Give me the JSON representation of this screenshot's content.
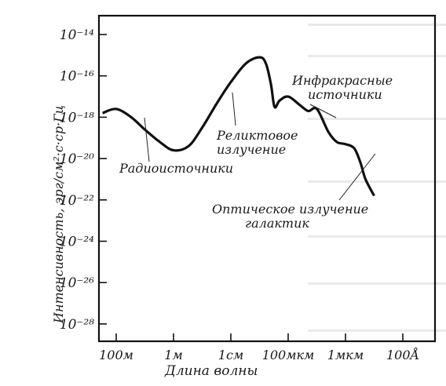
{
  "chart_data": {
    "type": "line",
    "title": "",
    "xlabel": "Длина волны",
    "ylabel": "Интенсивность, эрг/см²·с·ср·Гц",
    "x_tick_labels": [
      "100м",
      "1м",
      "1см",
      "100мкм",
      "1мкм",
      "100Å"
    ],
    "y_tick_labels": [
      "10⁻¹⁴",
      "10⁻¹⁶",
      "10⁻¹⁸",
      "10⁻²⁰",
      "10⁻²²",
      "10⁻²⁴",
      "10⁻²⁶",
      "10⁻²⁸"
    ],
    "y_tick_exponents": [
      -14,
      -16,
      -18,
      -20,
      -22,
      -24,
      -26,
      -28
    ],
    "y_log_scale": true,
    "x_log_scale": true,
    "grid": false,
    "series": [
      {
        "x_wavelength_m": [
          300,
          100,
          30,
          10,
          3,
          1,
          0.3,
          0.1,
          0.03,
          0.01,
          0.003,
          0.001,
          0.0006,
          0.0004,
          0.0003,
          0.0002,
          0.0001,
          4e-05,
          2e-05,
          1e-05,
          4e-06,
          2e-06,
          1e-06,
          5e-07,
          3e-07,
          2e-07,
          1e-07
        ],
        "y_log10_intensity": [
          -17.8,
          -17.6,
          -18.0,
          -18.6,
          -19.2,
          -19.6,
          -19.4,
          -18.5,
          -17.3,
          -16.3,
          -15.4,
          -15.1,
          -15.4,
          -16.4,
          -17.5,
          -17.2,
          -17.0,
          -17.4,
          -17.7,
          -17.6,
          -18.7,
          -19.2,
          -19.3,
          -19.5,
          -20.2,
          -21.0,
          -21.8
        ]
      }
    ],
    "annotations": [
      {
        "text": "Инфракрасные",
        "text2": "источники"
      },
      {
        "text": "Реликтовое",
        "text2": "излучение"
      },
      {
        "text": "Радиоисточники"
      },
      {
        "text": "Оптическое излучение",
        "text2": "галактик"
      }
    ]
  }
}
